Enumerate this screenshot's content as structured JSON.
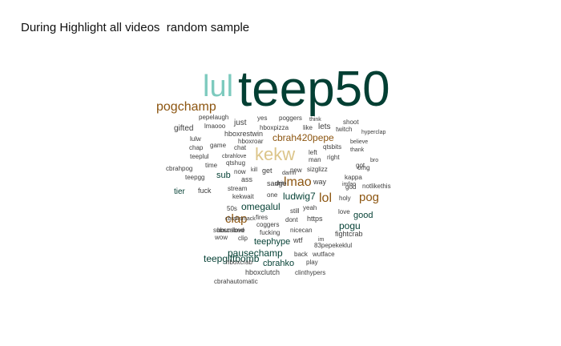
{
  "title": "During Highlight all videos  random sample",
  "colors": {
    "dark": "#033f33",
    "teal": "#7dcabe",
    "brown": "#8c5510",
    "tan": "#dcc58a",
    "small": "#3d3d3d"
  },
  "chart_data": {
    "type": "wordcloud",
    "title": "During Highlight all videos  random sample",
    "words": [
      {
        "text": "teep50",
        "level": 5
      },
      {
        "text": "lul",
        "level": 4
      },
      {
        "text": "kekw",
        "level": 4
      },
      {
        "text": "pogchamp",
        "level": 3
      },
      {
        "text": "lmao",
        "level": 3
      },
      {
        "text": "lol",
        "level": 3
      },
      {
        "text": "pog",
        "level": 3
      },
      {
        "text": "clap",
        "level": 3
      },
      {
        "text": "cbrah420pepe",
        "level": 2
      },
      {
        "text": "omegalul",
        "level": 2
      },
      {
        "text": "ludwig7",
        "level": 2
      },
      {
        "text": "pausechamp",
        "level": 2
      },
      {
        "text": "teepgiftbomb",
        "level": 2
      },
      {
        "text": "pogu",
        "level": 2
      },
      {
        "text": "good",
        "level": 2
      },
      {
        "text": "teephype",
        "level": 2
      },
      {
        "text": "cbrahko",
        "level": 2
      },
      {
        "text": "sub",
        "level": 2
      },
      {
        "text": "tier",
        "level": 2
      },
      {
        "text": "gifted",
        "level": 1
      },
      {
        "text": "just",
        "level": 1
      },
      {
        "text": "lets",
        "level": 1
      },
      {
        "text": "hboxrestwin",
        "level": 1
      },
      {
        "text": "fuck",
        "level": 1
      },
      {
        "text": "way",
        "level": 1
      },
      {
        "text": "hboxclutch",
        "level": 1
      },
      {
        "text": "wtf",
        "level": 1
      },
      {
        "text": "https",
        "level": 1
      },
      {
        "text": "get",
        "level": 1
      },
      {
        "text": "ass",
        "level": 1
      },
      {
        "text": "pepelaugh",
        "level": 0
      },
      {
        "text": "yes",
        "level": 0
      },
      {
        "text": "poggers",
        "level": 0
      },
      {
        "text": "think",
        "level": 0
      },
      {
        "text": "shoot",
        "level": 0
      },
      {
        "text": "lmaooo",
        "level": 0
      },
      {
        "text": "hboxpizza",
        "level": 0
      },
      {
        "text": "like",
        "level": 0
      },
      {
        "text": "twitch",
        "level": 0
      },
      {
        "text": "hyperclap",
        "level": 0
      },
      {
        "text": "lulw",
        "level": 0
      },
      {
        "text": "hboxroar",
        "level": 0
      },
      {
        "text": "believe",
        "level": 0
      },
      {
        "text": "chap",
        "level": 0
      },
      {
        "text": "game",
        "level": 0
      },
      {
        "text": "chat",
        "level": 0
      },
      {
        "text": "qtsbits",
        "level": 0
      },
      {
        "text": "thank",
        "level": 0
      },
      {
        "text": "teeplul",
        "level": 0
      },
      {
        "text": "cbrahlove",
        "level": 0
      },
      {
        "text": "left",
        "level": 0
      },
      {
        "text": "man",
        "level": 0
      },
      {
        "text": "right",
        "level": 0
      },
      {
        "text": "bro",
        "level": 0
      },
      {
        "text": "qtshug",
        "level": 0
      },
      {
        "text": "got",
        "level": 0
      },
      {
        "text": "cbrahpog",
        "level": 0
      },
      {
        "text": "time",
        "level": 0
      },
      {
        "text": "now",
        "level": 0
      },
      {
        "text": "kill",
        "level": 0
      },
      {
        "text": "new",
        "level": 0
      },
      {
        "text": "sizglizz",
        "level": 0
      },
      {
        "text": "omg",
        "level": 0
      },
      {
        "text": "teepgg",
        "level": 0
      },
      {
        "text": "sadge",
        "level": 0
      },
      {
        "text": "shit",
        "level": 0
      },
      {
        "text": "damn",
        "level": 0
      },
      {
        "text": "imfao",
        "level": 0
      },
      {
        "text": "kappa",
        "level": 0
      },
      {
        "text": "god",
        "level": 0
      },
      {
        "text": "notlikethis",
        "level": 0
      },
      {
        "text": "stream",
        "level": 0
      },
      {
        "text": "cbrahsmack",
        "level": 0
      },
      {
        "text": "kekwait",
        "level": 0
      },
      {
        "text": "one",
        "level": 0
      },
      {
        "text": "holy",
        "level": 0
      },
      {
        "text": "50s",
        "level": 0
      },
      {
        "text": "still",
        "level": 0
      },
      {
        "text": "yeah",
        "level": 0
      },
      {
        "text": "love",
        "level": 0
      },
      {
        "text": "subscribed",
        "level": 0
      },
      {
        "text": "fires",
        "level": 0
      },
      {
        "text": "coggers",
        "level": 0
      },
      {
        "text": "dont",
        "level": 0
      },
      {
        "text": "hourslove",
        "level": 0
      },
      {
        "text": "fucking",
        "level": 0
      },
      {
        "text": "nicecan",
        "level": 0
      },
      {
        "text": "fightcrab",
        "level": 0
      },
      {
        "text": "wow",
        "level": 0
      },
      {
        "text": "clip",
        "level": 0
      },
      {
        "text": "83pepekeklul",
        "level": 0
      },
      {
        "text": "im",
        "level": 0
      },
      {
        "text": "back",
        "level": 0
      },
      {
        "text": "wutface",
        "level": 0
      },
      {
        "text": "hboxcrab",
        "level": 0
      },
      {
        "text": "play",
        "level": 0
      },
      {
        "text": "clinthypers",
        "level": 0
      },
      {
        "text": "cbrahautomatic",
        "level": 0
      }
    ]
  }
}
